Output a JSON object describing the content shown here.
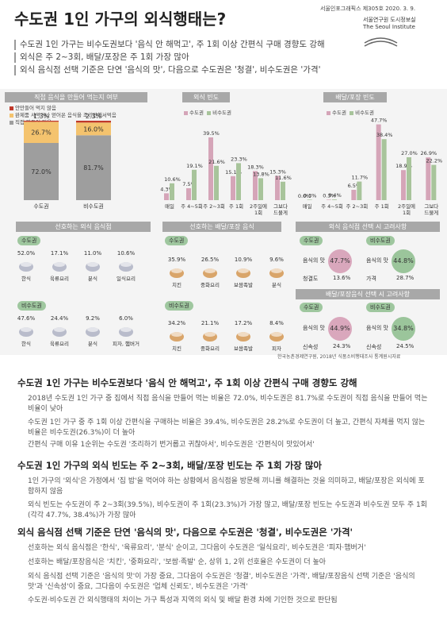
{
  "header": {
    "title": "수도권 1인 가구의 외식행태는?",
    "issue": "서울인포그래픽스 제305호 2020. 3. 9.",
    "org1": "서울연구원 도시정보실",
    "org2": "The Seoul Institute"
  },
  "summary": [
    "수도권 1인 가구는 비수도권보다 '음식 안 해먹고', 주 1회 이상 간편식 구매 경향도 강해",
    "외식은 주 2~3회, 배달/포장은 주 1회 가장 많아",
    "외식 음식점 선택 기준은 단연 '음식의 맛', 다음으로 수도권은 '청결', 비수도권은 '가격'"
  ],
  "sections": {
    "s1": "직접 음식을 만들어 먹는지 여부",
    "s2": "외식 빈도",
    "s3": "배달/포장 빈도",
    "s4": "선호하는 외식 음식점",
    "s5": "선호하는 배달/포장 음식",
    "s6": "외식 음식점 선택 시 고려사항",
    "s7": "배달/포장음식 선택 시 고려사항"
  },
  "legend": {
    "sudo": "수도권",
    "bisudo": "비수도권",
    "s1": [
      "안만들어 먹지 않음",
      "완제품 사먹거나 얻어온 음식을 조리만해서먹음",
      "직접 만들어 먹음"
    ]
  },
  "colors": {
    "pink": "#d5a5b8",
    "green": "#a8c49b",
    "gray": "#9e9e9e",
    "orange": "#f4c36e",
    "bar": "#d9a1b5",
    "red": "#c0392b"
  },
  "chart_data": [
    {
      "type": "bar",
      "title": "직접 음식을 만들어 먹는지 여부",
      "categories": [
        "수도권",
        "비수도권"
      ],
      "series": [
        {
          "name": "직접 만들어 먹음",
          "values": [
            72.0,
            81.7
          ]
        },
        {
          "name": "완제품 사먹거나 얻어온 음식을 조리만해서먹음",
          "values": [
            26.7,
            16.0
          ]
        },
        {
          "name": "안만들어 먹지 않음",
          "values": [
            1.3,
            2.3
          ]
        }
      ],
      "stacked": true
    },
    {
      "type": "bar",
      "title": "외식 빈도",
      "categories": [
        "매일",
        "주 4~5회",
        "주 2~3회",
        "주 1회",
        "2주일에 1회",
        "그보다 드물게"
      ],
      "series": [
        {
          "name": "수도권",
          "values": [
            4.3,
            7.5,
            39.5,
            15.1,
            18.3,
            15.3
          ]
        },
        {
          "name": "비수도권",
          "values": [
            10.6,
            19.1,
            21.6,
            23.3,
            13.8,
            11.6
          ]
        }
      ]
    },
    {
      "type": "bar",
      "title": "배달/포장 빈도",
      "categories": [
        "매일",
        "주 4~5회",
        "주 2~3회",
        "주 1회",
        "2주일에 1회",
        "그보다 드물게"
      ],
      "series": [
        {
          "name": "수도권",
          "values": [
            0.0,
            0.3,
            6.5,
            47.7,
            18.9,
            26.9
          ]
        },
        {
          "name": "비수도권",
          "values": [
            0.3,
            0.4,
            11.7,
            38.4,
            27.0,
            22.2
          ]
        }
      ]
    }
  ],
  "pref_out": {
    "sudo_label": "수도권",
    "bisudo_label": "비수도권",
    "sudo": [
      {
        "name": "한식",
        "pct": "52.0%",
        "icon": "rice-bowl-icon"
      },
      {
        "name": "육류요리",
        "pct": "17.1%",
        "icon": "steak-icon"
      },
      {
        "name": "분식",
        "pct": "11.0%",
        "icon": "skewer-icon"
      },
      {
        "name": "일식요리",
        "pct": "10.6%",
        "icon": "sushi-icon"
      }
    ],
    "bisudo": [
      {
        "name": "한식",
        "pct": "47.6%",
        "icon": "rice-bowl-icon"
      },
      {
        "name": "육류요리",
        "pct": "24.4%",
        "icon": "steak-icon"
      },
      {
        "name": "분식",
        "pct": "9.2%",
        "icon": "skewer-icon"
      },
      {
        "name": "피자, 햄버거",
        "pct": "6.0%",
        "icon": "pizza-icon"
      }
    ]
  },
  "pref_del": {
    "sudo_label": "수도권",
    "bisudo_label": "비수도권",
    "sudo": [
      {
        "name": "치킨",
        "pct": "35.9%",
        "icon": "chicken-icon"
      },
      {
        "name": "중화요리",
        "pct": "26.5%",
        "icon": "noodle-icon"
      },
      {
        "name": "보쌈족발",
        "pct": "10.9%",
        "icon": "pork-icon"
      },
      {
        "name": "분식",
        "pct": "9.6%",
        "icon": "skewer-icon"
      }
    ],
    "bisudo": [
      {
        "name": "치킨",
        "pct": "34.2%",
        "icon": "chicken-icon"
      },
      {
        "name": "중화요리",
        "pct": "21.1%",
        "icon": "noodle-icon"
      },
      {
        "name": "보쌈족발",
        "pct": "17.2%",
        "icon": "pork-icon"
      },
      {
        "name": "피자",
        "pct": "8.4%",
        "icon": "pizza-icon"
      }
    ]
  },
  "consider_out": {
    "sudo_label": "수도권",
    "bisudo_label": "비수도권",
    "sudo": [
      {
        "name": "음식의 맛",
        "pct": "47.7%"
      },
      {
        "name": "청결도",
        "pct": "13.6%"
      }
    ],
    "bisudo": [
      {
        "name": "음식의 맛",
        "pct": "44.8%"
      },
      {
        "name": "가격",
        "pct": "28.7%"
      }
    ]
  },
  "consider_del": {
    "sudo_label": "수도권",
    "bisudo_label": "비수도권",
    "sudo": [
      {
        "name": "음식의 맛",
        "pct": "44.9%"
      },
      {
        "name": "신속성",
        "pct": "24.3%"
      }
    ],
    "bisudo": [
      {
        "name": "음식의 맛",
        "pct": "34.8%"
      },
      {
        "name": "신속성",
        "pct": "24.5%"
      }
    ]
  },
  "source": "한국농촌경제연구원, 2018년 식품소비행태조사 통계원시자료",
  "body": {
    "h1": "수도권 1인 가구는 비수도권보다 '음식 안 해먹고', 주 1회 이상 간편식 구매 경향도 강해",
    "p1": [
      "2018년 수도권 1인 가구 중 집에서 직접 음식을 만들어 먹는 비율은 72.0%, 비수도권은 81.7%로 수도권이 직접 음식을 만들어 먹는 비율이 낮아",
      "수도권 1인 가구 중 주 1회 이상 간편식을 구매하는 비율은 39.4%, 비수도권은 28.2%로 수도권이 더 높고, 간편식 자체를 먹지 않는 비율은 비수도권(26.3%)이 더 높아",
      "간편식 구매 이유 1순위는 수도권 '조리하기 번거롭고 귀찮아서', 비수도권은 '간편식이 맛있어서'"
    ],
    "h2": "수도권 1인 가구의 외식 빈도는 주 2~3회, 배달/포장 빈도는 주 1회 가장 많아",
    "p2": [
      "1인 가구의 '외식'은 가정에서 '집 밥'을 먹어야 하는 상황에서 음식점을 방문해 끼니를 해결하는 것을 의미하고, 배달/포장은 외식에 포함하지 않음",
      "외식 빈도는 수도권이 주 2~3회(39.5%), 비수도권이 주 1회(23.3%)가 가장 많고, 배달/포장 빈도는 수도권과 비수도권 모두 주 1회(각각 47.7%, 38.4%)가 가장 많아"
    ],
    "h3": "외식 음식점 선택 기준은 단연 '음식의 맛', 다음으로 수도권은 '청결', 비수도권은 '가격'",
    "p3": [
      "선호하는 외식 음식점은 '한식', '육류요리', '분식' 순이고, 그다음이 수도권은 '일식요리', 비수도권은 '피자·햄버거'",
      "선호하는 배달/포장음식은 '치킨', '중화요리', '보쌈·족발' 순, 상위 1, 2위 선호율은 수도권이 더 높아",
      "외식 음식점 선택 기준은 '음식의 맛'이 가장 중요, 그다음이 수도권은 '청결', 비수도권은 '가격', 배달/포장음식 선택 기준은 '음식의 맛'과 '신속성'이 중요, 그다음이 수도권은 '업체 신뢰도', 비수도권은 '가격'",
      "수도권·비수도권 간 외식행태의 차이는 가구 특성과 지역의 외식 및 배달 환경 차에 기인한 것으로 판단됨"
    ]
  }
}
